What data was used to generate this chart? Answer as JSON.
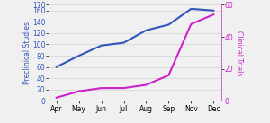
{
  "x_labels": [
    "Apr",
    "May",
    "Jun",
    "Jul",
    "Aug",
    "Sep",
    "Nov",
    "Dec"
  ],
  "preclinical": [
    60,
    80,
    98,
    103,
    125,
    135,
    163,
    160
  ],
  "clinical": [
    2,
    6,
    8,
    8,
    10,
    16,
    48,
    54
  ],
  "preclinical_color": "#3355bb",
  "clinical_color": "#cc22cc",
  "left_label": "Preclinical Studies",
  "right_label": "Clinical Trials",
  "left_ylim": [
    0,
    170
  ],
  "right_ylim": [
    0,
    60
  ],
  "left_yticks": [
    0,
    20,
    40,
    60,
    80,
    100,
    120,
    140,
    160,
    170
  ],
  "right_yticks": [
    0,
    20,
    40,
    60
  ],
  "background_color": "#f0f0f0",
  "grid_color": "#cccccc",
  "label_fontsize": 5.5,
  "tick_fontsize": 5.5,
  "linewidth": 1.5
}
